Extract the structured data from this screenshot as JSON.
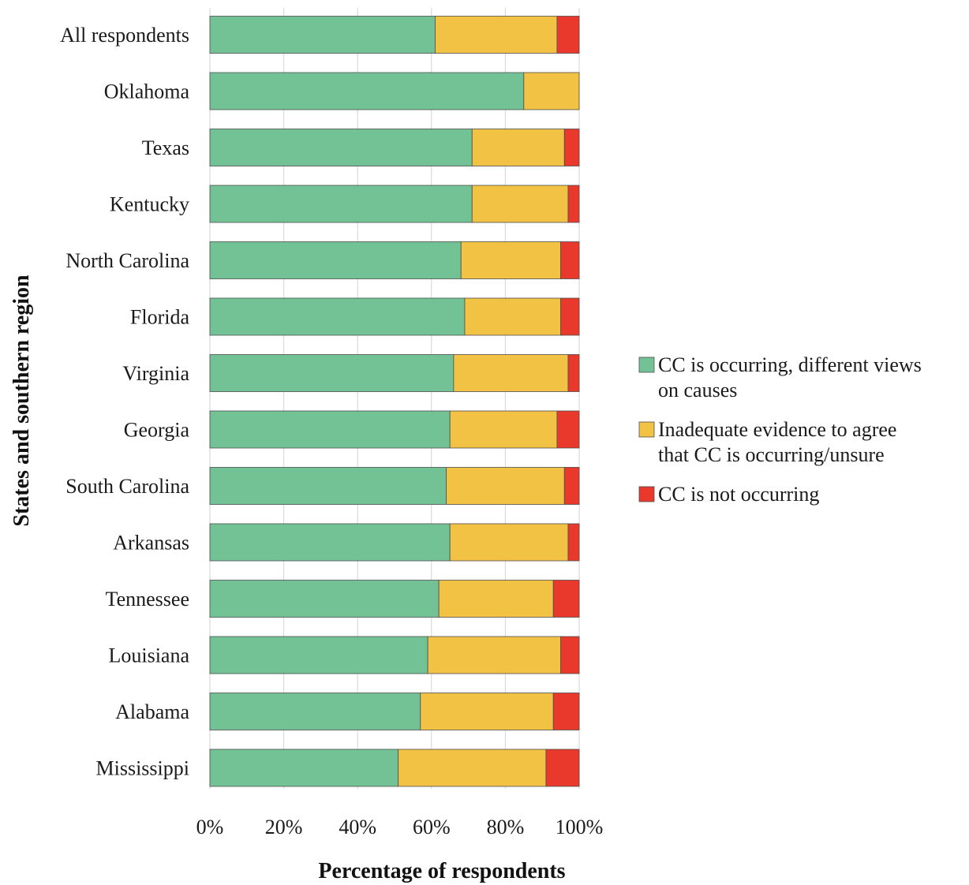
{
  "chart_data": {
    "type": "bar",
    "orientation": "horizontal",
    "stacked": true,
    "categories": [
      "All respondents",
      "Oklahoma",
      "Texas",
      "Kentucky",
      "North Carolina",
      "Florida",
      "Virginia",
      "Georgia",
      "South Carolina",
      "Arkansas",
      "Tennessee",
      "Louisiana",
      "Alabama",
      "Mississippi"
    ],
    "series": [
      {
        "name": "CC is occurring, different views on causes",
        "legend_lines": [
          "CC is occurring, different views",
          "on causes"
        ],
        "color": "#72C295",
        "values": [
          61,
          85,
          71,
          71,
          68,
          69,
          66,
          65,
          64,
          65,
          62,
          59,
          57,
          51
        ]
      },
      {
        "name": "Inadequate evidence to agree that CC is occurring/unsure",
        "legend_lines": [
          "Inadequate evidence to agree",
          "that CC is occurring/unsure"
        ],
        "color": "#F2C244",
        "values": [
          33,
          15,
          25,
          26,
          27,
          26,
          31,
          29,
          32,
          32,
          31,
          36,
          36,
          40
        ]
      },
      {
        "name": "CC is not occurring",
        "legend_lines": [
          "CC is not occurring"
        ],
        "color": "#E8392C",
        "values": [
          6,
          0,
          4,
          3,
          5,
          5,
          3,
          6,
          4,
          3,
          7,
          5,
          7,
          9
        ]
      }
    ],
    "xlabel": "Percentage of respondents",
    "ylabel": "States and southern region",
    "xlim": [
      0,
      100
    ],
    "xticks": [
      "0%",
      "20%",
      "40%",
      "60%",
      "80%",
      "100%"
    ],
    "grid": "vertical",
    "legend_position": "right"
  }
}
